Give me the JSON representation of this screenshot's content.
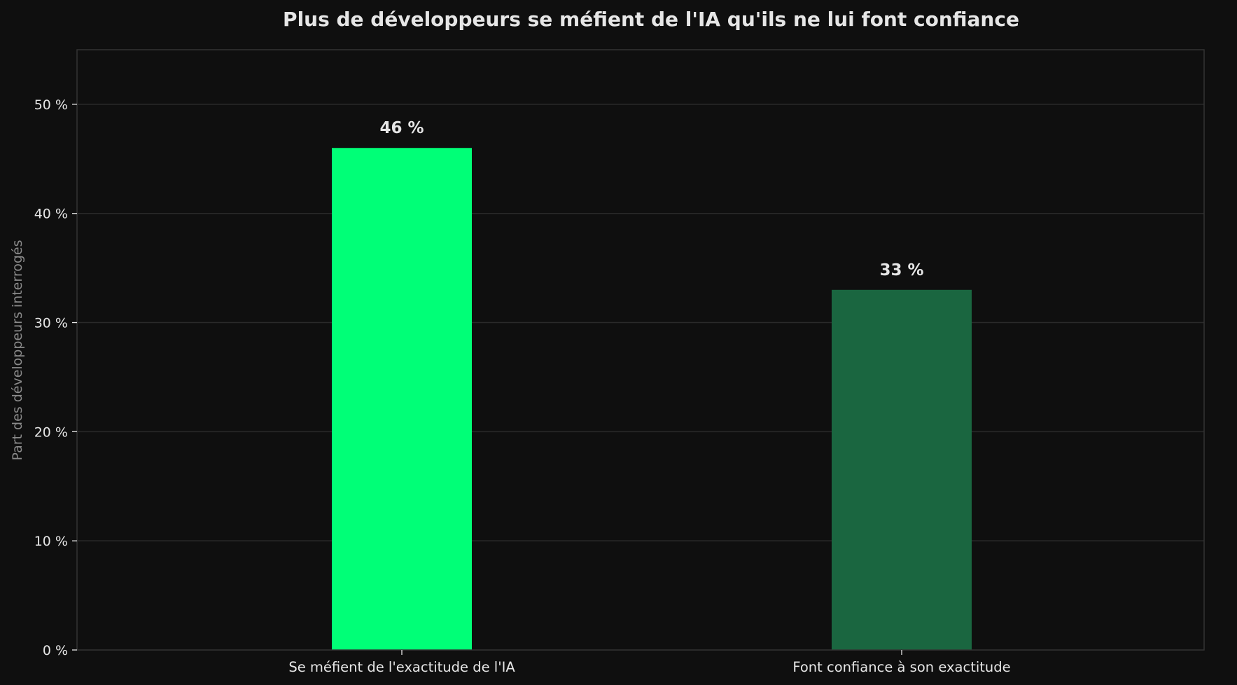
{
  "chart_data": {
    "type": "bar",
    "title": "Plus de développeurs se méfient de l'IA qu'ils ne lui font confiance",
    "xlabel": "",
    "ylabel": "Part des développeurs interrogés",
    "categories": [
      "Se méfient de l'exactitude de l'IA",
      "Font confiance à son exactitude"
    ],
    "values": [
      46,
      33
    ],
    "value_labels": [
      "46 %",
      "33 %"
    ],
    "bar_colors": [
      "#00ff77",
      "#1a6640"
    ],
    "ylim": [
      0,
      55
    ],
    "yticks": [
      0,
      10,
      20,
      30,
      40,
      50
    ],
    "ytick_labels": [
      "0 %",
      "10 %",
      "20 %",
      "30 %",
      "40 %",
      "50 %"
    ],
    "grid": true,
    "legend": "none"
  },
  "colors": {
    "background": "#0f0f0f",
    "grid": "#2a2a2a",
    "spine": "#333333",
    "text": "#e6e6e6",
    "muted_text": "#8a8a8a"
  }
}
